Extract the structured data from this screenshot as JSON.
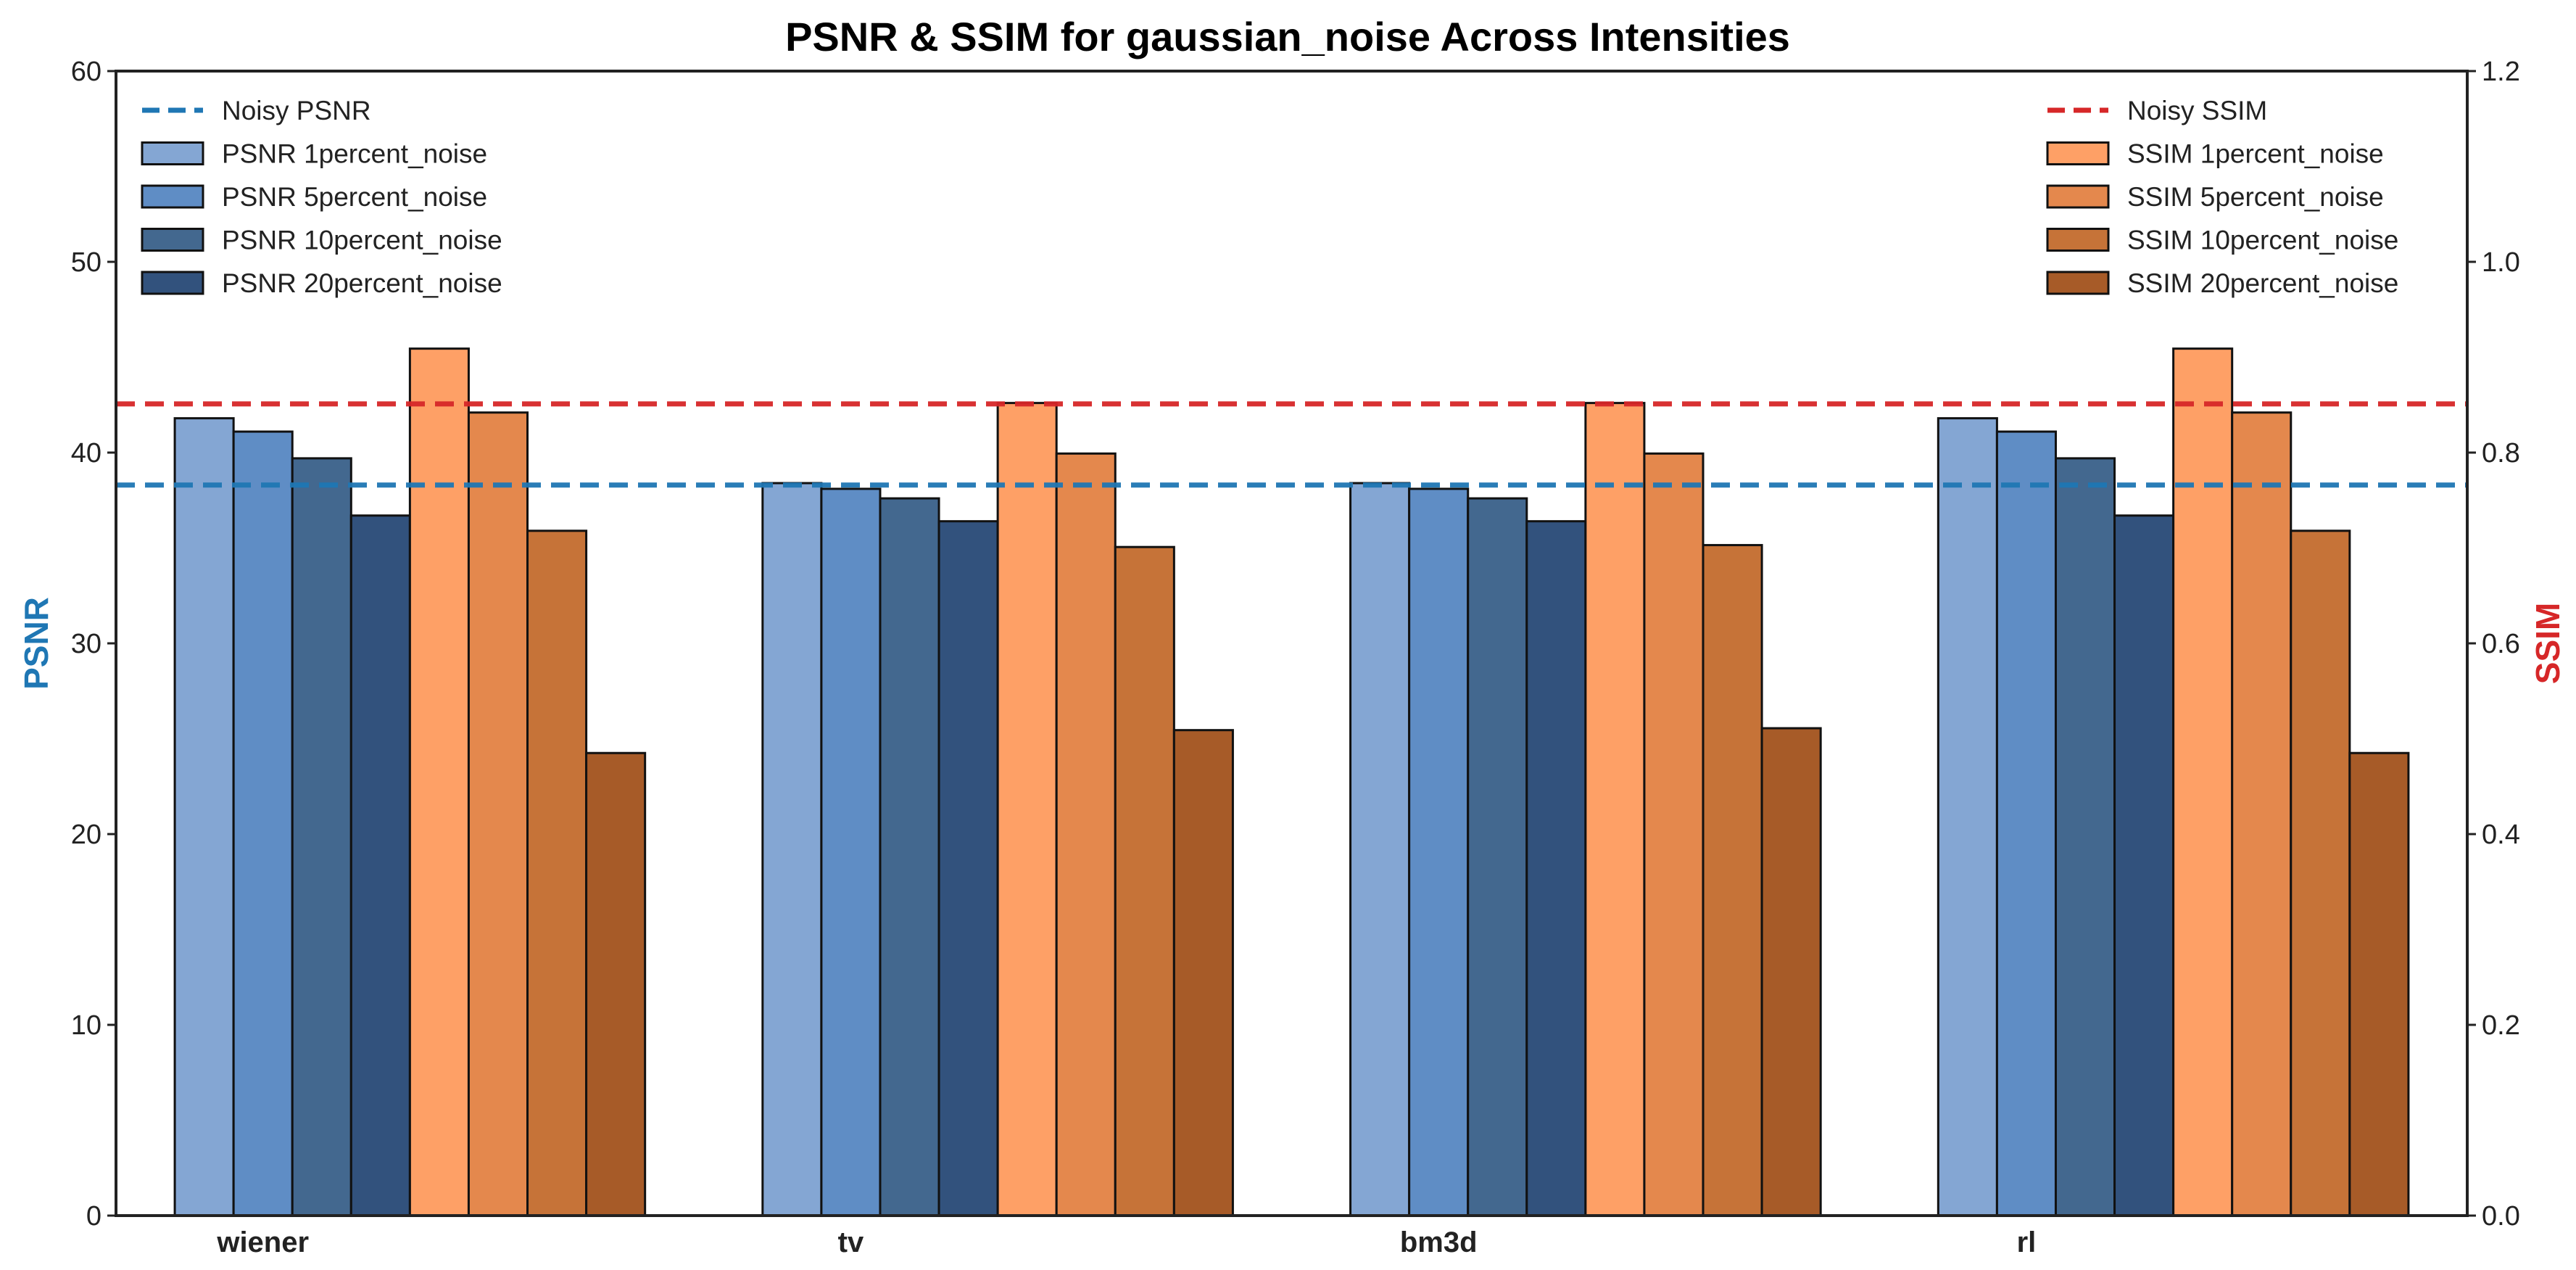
{
  "chart_data": {
    "type": "bar",
    "title": "PSNR & SSIM for gaussian_noise Across Intensities",
    "categories": [
      "wiener",
      "tv",
      "bm3d",
      "rl"
    ],
    "left_axis": {
      "label": "PSNR",
      "label_color": "#1f77b4",
      "range": [
        0,
        60
      ],
      "ticks": [
        "0",
        "10",
        "20",
        "30",
        "40",
        "50",
        "60"
      ]
    },
    "right_axis": {
      "label": "SSIM",
      "label_color": "#d62728",
      "range": [
        0,
        1.2
      ],
      "ticks": [
        "0.0",
        "0.2",
        "0.4",
        "0.6",
        "0.8",
        "1.0",
        "1.2"
      ]
    },
    "series": [
      {
        "name": "PSNR 1percent_noise",
        "axis": "left",
        "color": "#84a6d3",
        "values": [
          41.8,
          38.4,
          38.4,
          41.8
        ]
      },
      {
        "name": "PSNR 5percent_noise",
        "axis": "left",
        "color": "#5f8dc5",
        "values": [
          41.1,
          38.1,
          38.1,
          41.1
        ]
      },
      {
        "name": "PSNR 10percent_noise",
        "axis": "left",
        "color": "#43688f",
        "values": [
          39.7,
          37.6,
          37.6,
          39.7
        ]
      },
      {
        "name": "PSNR 20percent_noise",
        "axis": "left",
        "color": "#32527d",
        "values": [
          36.7,
          36.4,
          36.4,
          36.7
        ]
      },
      {
        "name": "SSIM 1percent_noise",
        "axis": "right",
        "color": "#fea066",
        "values": [
          0.909,
          0.852,
          0.852,
          0.909
        ]
      },
      {
        "name": "SSIM 5percent_noise",
        "axis": "right",
        "color": "#e4884d",
        "values": [
          0.842,
          0.799,
          0.799,
          0.842
        ]
      },
      {
        "name": "SSIM 10percent_noise",
        "axis": "right",
        "color": "#c67338",
        "values": [
          0.718,
          0.701,
          0.703,
          0.718
        ]
      },
      {
        "name": "SSIM 20percent_noise",
        "axis": "right",
        "color": "#a75b28",
        "values": [
          0.485,
          0.509,
          0.511,
          0.485
        ]
      }
    ],
    "reference_lines": [
      {
        "name": "Noisy PSNR",
        "axis": "left",
        "value": 38.3,
        "color": "#1f77b4",
        "style": "dashed"
      },
      {
        "name": "Noisy SSIM",
        "axis": "right",
        "value": 0.851,
        "color": "#d62728",
        "style": "dashed"
      }
    ],
    "legends": [
      {
        "placement": "top-left",
        "entries": [
          "Noisy PSNR",
          "PSNR 1percent_noise",
          "PSNR 5percent_noise",
          "PSNR 10percent_noise",
          "PSNR 20percent_noise"
        ]
      },
      {
        "placement": "top-right",
        "entries": [
          "Noisy SSIM",
          "SSIM 1percent_noise",
          "SSIM 5percent_noise",
          "SSIM 10percent_noise",
          "SSIM 20percent_noise"
        ]
      }
    ],
    "grid": false
  }
}
